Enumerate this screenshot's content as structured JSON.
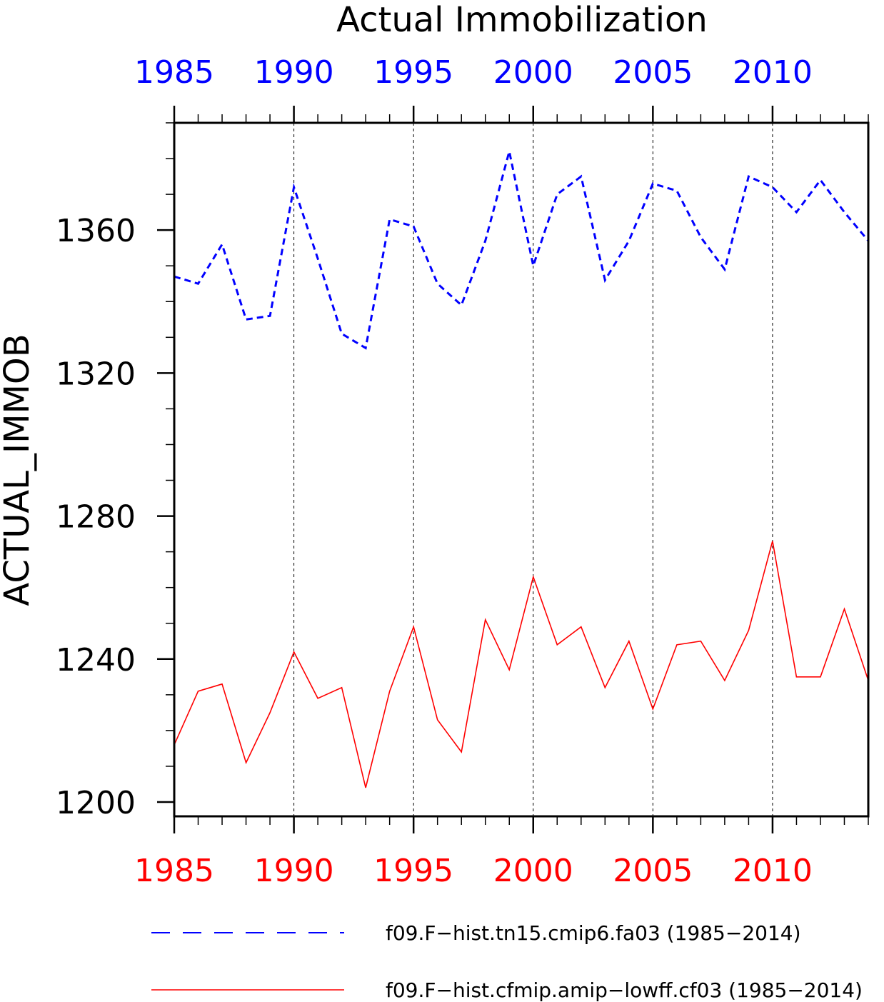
{
  "chart_data": {
    "type": "line",
    "title": "Actual Immobilization",
    "ylabel": "ACTUAL_IMMOB",
    "xlabel": "",
    "xlim": [
      1985,
      2014
    ],
    "ylim": [
      1196,
      1390
    ],
    "x_ticks": [
      1985,
      1990,
      1995,
      2000,
      2005,
      2010
    ],
    "x_tick_labels": [
      "1985",
      "1990",
      "1995",
      "2000",
      "2005",
      "2010"
    ],
    "y_ticks": [
      1200,
      1240,
      1280,
      1320,
      1360
    ],
    "y_tick_labels": [
      "1200",
      "1240",
      "1280",
      "1320",
      "1360"
    ],
    "grid": "vertical dashed at major x ticks",
    "legend_position": "bottom",
    "x": [
      1985,
      1986,
      1987,
      1988,
      1989,
      1990,
      1991,
      1992,
      1993,
      1994,
      1995,
      1996,
      1997,
      1998,
      1999,
      2000,
      2001,
      2002,
      2003,
      2004,
      2005,
      2006,
      2007,
      2008,
      2009,
      2010,
      2011,
      2012,
      2013,
      2014
    ],
    "series": [
      {
        "name": "f09.F−hist.tn15.cmip6.fa03 (1985−2014)",
        "color": "#0000ff",
        "style": "dashed",
        "values": [
          1347,
          1345,
          1356,
          1335,
          1336,
          1372,
          1352,
          1331,
          1327,
          1363,
          1361,
          1345,
          1339,
          1357,
          1382,
          1350,
          1370,
          1375,
          1346,
          1357,
          1373,
          1371,
          1358,
          1349,
          1375,
          1372,
          1365,
          1374,
          1365,
          1357
        ]
      },
      {
        "name": "f09.F−hist.cfmip.amip−lowff.cf03 (1985−2014)",
        "color": "#ff0000",
        "style": "solid",
        "values": [
          1216,
          1231,
          1233,
          1211,
          1225,
          1242,
          1229,
          1232,
          1204,
          1231,
          1249,
          1223,
          1214,
          1251,
          1237,
          1263,
          1244,
          1249,
          1232,
          1245,
          1226,
          1244,
          1245,
          1234,
          1248,
          1273,
          1235,
          1235,
          1254,
          1234
        ]
      }
    ]
  },
  "top_axis_color": "#0000ff",
  "bottom_axis_color": "#ff0000"
}
